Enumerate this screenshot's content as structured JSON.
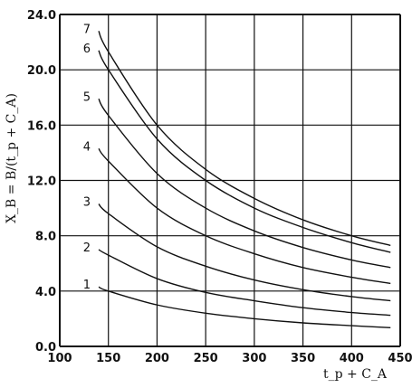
{
  "chart_data": {
    "type": "line",
    "xlabel": "t_p + C_A",
    "ylabel": "X_B = B/(t_p + C_A)",
    "xlim": [
      100,
      450
    ],
    "ylim": [
      0,
      24
    ],
    "x_ticks": [
      "100",
      "150",
      "200",
      "250",
      "300",
      "350",
      "400",
      "450"
    ],
    "y_ticks": [
      "0.0",
      "4.0",
      "8.0",
      "12.0",
      "16.0",
      "20.0",
      "24.0"
    ],
    "grid": true,
    "series": [
      {
        "name": "1",
        "x": [
          140,
          150,
          200,
          250,
          300,
          350,
          400,
          440
        ],
        "y": [
          4.3,
          4.0,
          3.0,
          2.4,
          2.0,
          1.7,
          1.5,
          1.35
        ]
      },
      {
        "name": "2",
        "x": [
          140,
          150,
          200,
          250,
          300,
          350,
          400,
          440
        ],
        "y": [
          7.0,
          6.6,
          4.9,
          3.9,
          3.3,
          2.8,
          2.45,
          2.25
        ]
      },
      {
        "name": "3",
        "x": [
          140,
          150,
          200,
          250,
          300,
          350,
          400,
          440
        ],
        "y": [
          10.3,
          9.6,
          7.2,
          5.8,
          4.8,
          4.1,
          3.6,
          3.3
        ]
      },
      {
        "name": "4",
        "x": [
          140,
          150,
          200,
          250,
          300,
          350,
          400,
          440
        ],
        "y": [
          14.3,
          13.4,
          10.0,
          8.0,
          6.7,
          5.7,
          5.0,
          4.55
        ]
      },
      {
        "name": "5",
        "x": [
          140,
          150,
          200,
          250,
          300,
          350,
          400,
          440
        ],
        "y": [
          17.9,
          16.7,
          12.5,
          10.0,
          8.35,
          7.15,
          6.25,
          5.7
        ]
      },
      {
        "name": "6",
        "x": [
          140,
          150,
          200,
          250,
          300,
          350,
          400,
          440
        ],
        "y": [
          21.4,
          20.0,
          15.0,
          12.0,
          10.0,
          8.6,
          7.5,
          6.8
        ]
      },
      {
        "name": "7",
        "x": [
          140,
          150,
          200,
          250,
          300,
          350,
          400,
          440
        ],
        "y": [
          22.8,
          21.3,
          16.0,
          12.8,
          10.7,
          9.15,
          8.0,
          7.3
        ]
      }
    ]
  }
}
